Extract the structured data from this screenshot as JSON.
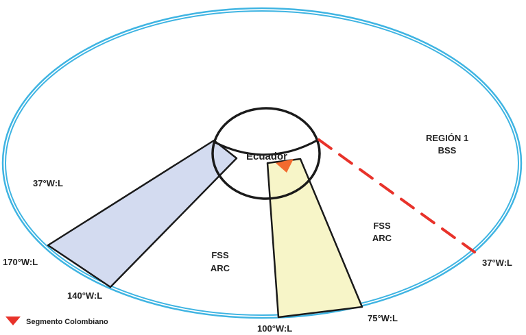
{
  "colors": {
    "orbit": "#3fb4e2",
    "outline": "#1a1a1a",
    "fss_left_fill": "#d3dbf0",
    "fss_right_fill": "#f7f5c8",
    "region_line": "#e8322a",
    "marker": "#f26a2e",
    "legend_marker": "#e8322a",
    "text": "#222222"
  },
  "labels": {
    "ecuador": "Ecuador",
    "region1_line1": "REGIÓN 1",
    "region1_line2": "BSS",
    "fss_right_line1": "FSS",
    "fss_right_line2": "ARC",
    "fss_center_line1": "FSS",
    "fss_center_line2": "ARC",
    "lon_37w_left": "37°W:L",
    "lon_170w": "170°W:L",
    "lon_140w": "140°W:L",
    "lon_100w": "100°W:L",
    "lon_75w": "75°W:L",
    "lon_37w_right": "37°W:L"
  },
  "legend": {
    "icon": "red-triangle-marker",
    "label": "Segmento Colombiano"
  }
}
